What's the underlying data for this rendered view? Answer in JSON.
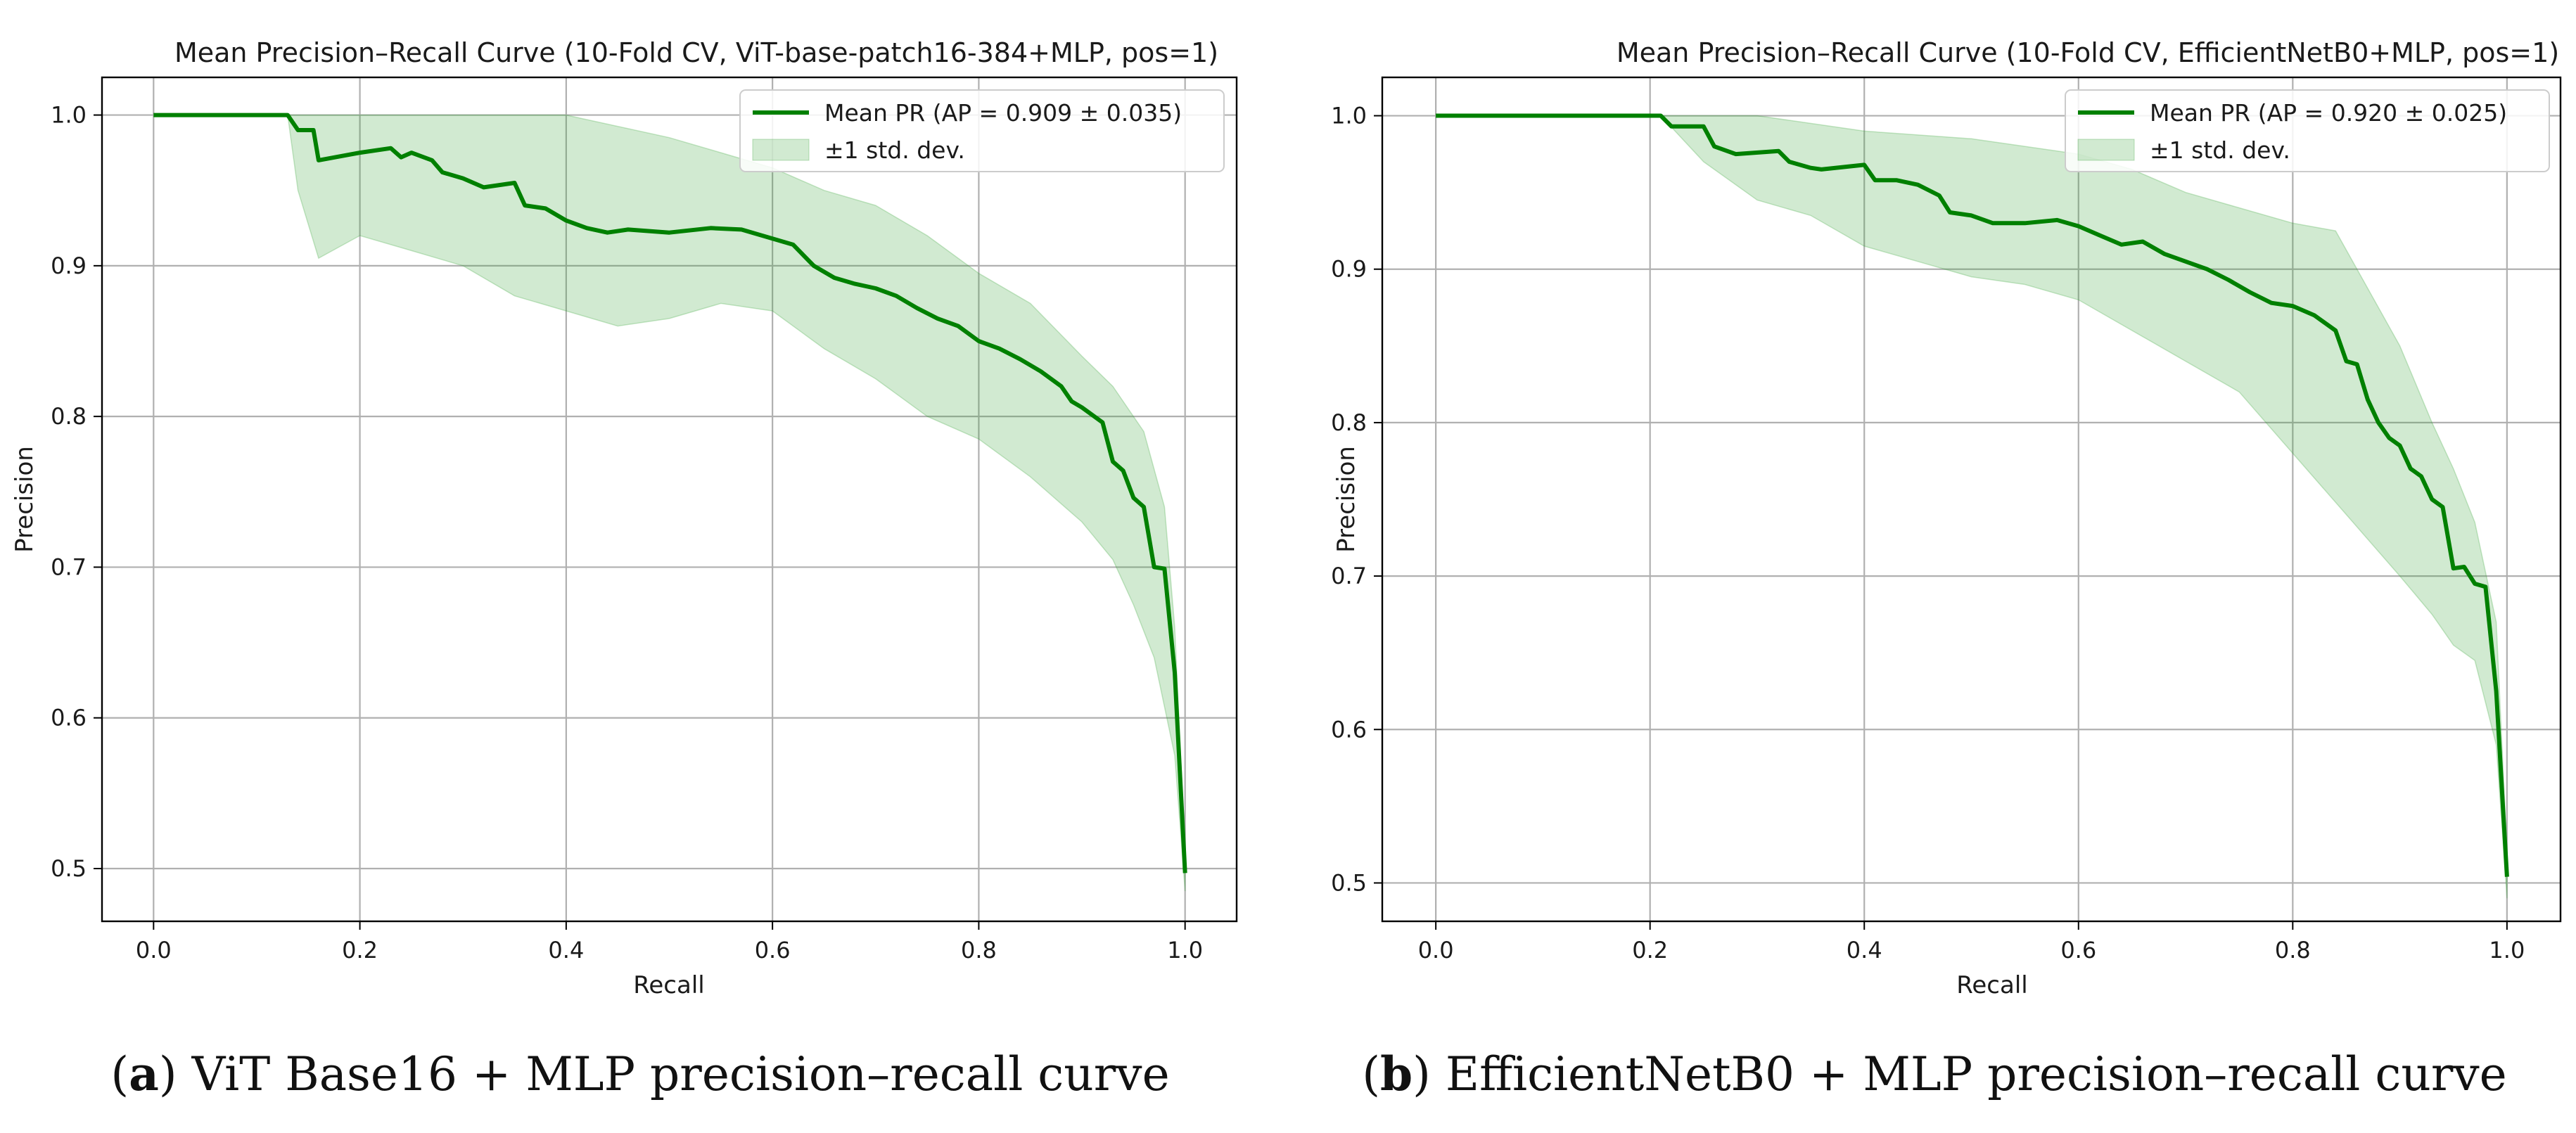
{
  "captions": [
    {
      "label": "a",
      "text": "ViT Base16 + MLP precision–recall curve"
    },
    {
      "label": "b",
      "text": "EfficientNetB0 + MLP precision–recall curve"
    }
  ],
  "colors": {
    "line": "#008000",
    "band": "#2ca02c",
    "grid": "#b0b0b0",
    "axis": "#000000"
  },
  "chart_data": [
    {
      "type": "line",
      "title": "Mean Precision–Recall Curve (10-Fold CV, ViT-base-patch16-384+MLP, pos=1)",
      "xlabel": "Recall",
      "ylabel": "Precision",
      "xlim": [
        -0.05,
        1.05
      ],
      "ylim": [
        0.465,
        1.025
      ],
      "xticks": [
        0.0,
        0.2,
        0.4,
        0.6,
        0.8,
        1.0
      ],
      "xticklabels": [
        "0.0",
        "0.2",
        "0.4",
        "0.6",
        "0.8",
        "1.0"
      ],
      "yticks": [
        0.5,
        0.6,
        0.7,
        0.8,
        0.9,
        1.0
      ],
      "yticklabels": [
        "0.5",
        "0.6",
        "0.7",
        "0.8",
        "0.9",
        "1.0"
      ],
      "grid": true,
      "legend_position": "top-right",
      "legend": [
        "Mean PR (AP = 0.909 ± 0.035)",
        "±1 std. dev."
      ],
      "series": [
        {
          "name": "Mean PR (AP = 0.909 ± 0.035)",
          "x": [
            0.0,
            0.13,
            0.14,
            0.155,
            0.16,
            0.2,
            0.23,
            0.24,
            0.25,
            0.27,
            0.28,
            0.3,
            0.32,
            0.35,
            0.36,
            0.38,
            0.4,
            0.42,
            0.44,
            0.46,
            0.5,
            0.54,
            0.57,
            0.6,
            0.62,
            0.64,
            0.66,
            0.68,
            0.7,
            0.72,
            0.74,
            0.76,
            0.78,
            0.8,
            0.82,
            0.84,
            0.86,
            0.88,
            0.89,
            0.9,
            0.92,
            0.93,
            0.94,
            0.95,
            0.96,
            0.97,
            0.98,
            0.99,
            1.0
          ],
          "y": [
            1.0,
            1.0,
            0.99,
            0.99,
            0.97,
            0.975,
            0.978,
            0.972,
            0.975,
            0.97,
            0.962,
            0.958,
            0.952,
            0.955,
            0.94,
            0.938,
            0.93,
            0.925,
            0.922,
            0.924,
            0.922,
            0.925,
            0.924,
            0.918,
            0.914,
            0.9,
            0.892,
            0.888,
            0.885,
            0.88,
            0.872,
            0.865,
            0.86,
            0.85,
            0.845,
            0.838,
            0.83,
            0.82,
            0.81,
            0.806,
            0.796,
            0.77,
            0.764,
            0.746,
            0.74,
            0.7,
            0.699,
            0.63,
            0.497
          ]
        },
        {
          "name": "±1 std. dev. upper",
          "x": [
            0.13,
            0.16,
            0.2,
            0.3,
            0.4,
            0.5,
            0.55,
            0.6,
            0.65,
            0.7,
            0.75,
            0.8,
            0.85,
            0.9,
            0.93,
            0.96,
            0.98,
            0.99,
            1.0
          ],
          "y": [
            1.0,
            1.0,
            1.0,
            1.0,
            1.0,
            0.985,
            0.975,
            0.965,
            0.95,
            0.94,
            0.92,
            0.895,
            0.875,
            0.84,
            0.82,
            0.79,
            0.74,
            0.66,
            0.51
          ]
        },
        {
          "name": "±1 std. dev. lower",
          "x": [
            0.13,
            0.14,
            0.16,
            0.2,
            0.25,
            0.3,
            0.35,
            0.4,
            0.45,
            0.5,
            0.55,
            0.6,
            0.65,
            0.7,
            0.75,
            0.8,
            0.85,
            0.9,
            0.93,
            0.95,
            0.97,
            0.99,
            1.0
          ],
          "y": [
            1.0,
            0.95,
            0.905,
            0.92,
            0.91,
            0.9,
            0.88,
            0.87,
            0.86,
            0.865,
            0.875,
            0.87,
            0.845,
            0.825,
            0.8,
            0.785,
            0.76,
            0.73,
            0.705,
            0.675,
            0.64,
            0.575,
            0.485
          ]
        }
      ]
    },
    {
      "type": "line",
      "title": "Mean Precision–Recall Curve (10-Fold CV, EfficientNetB0+MLP, pos=1)",
      "xlabel": "Recall",
      "ylabel": "Precision",
      "xlim": [
        -0.05,
        1.05
      ],
      "ylim": [
        0.475,
        1.025
      ],
      "xticks": [
        0.0,
        0.2,
        0.4,
        0.6,
        0.8,
        1.0
      ],
      "xticklabels": [
        "0.0",
        "0.2",
        "0.4",
        "0.6",
        "0.8",
        "1.0"
      ],
      "yticks": [
        0.5,
        0.6,
        0.7,
        0.8,
        0.9,
        1.0
      ],
      "yticklabels": [
        "0.5",
        "0.6",
        "0.7",
        "0.8",
        "0.9",
        "1.0"
      ],
      "grid": true,
      "legend_position": "top-right",
      "legend": [
        "Mean PR (AP = 0.920 ± 0.025)",
        "±1 std. dev."
      ],
      "series": [
        {
          "name": "Mean PR (AP = 0.920 ± 0.025)",
          "x": [
            0.0,
            0.21,
            0.22,
            0.25,
            0.26,
            0.28,
            0.32,
            0.33,
            0.35,
            0.36,
            0.4,
            0.41,
            0.43,
            0.45,
            0.47,
            0.48,
            0.5,
            0.52,
            0.55,
            0.58,
            0.6,
            0.62,
            0.64,
            0.66,
            0.68,
            0.7,
            0.72,
            0.74,
            0.76,
            0.78,
            0.8,
            0.82,
            0.84,
            0.85,
            0.86,
            0.87,
            0.88,
            0.89,
            0.9,
            0.91,
            0.92,
            0.93,
            0.94,
            0.95,
            0.96,
            0.97,
            0.98,
            0.99,
            1.0
          ],
          "y": [
            1.0,
            1.0,
            0.993,
            0.993,
            0.98,
            0.975,
            0.977,
            0.97,
            0.966,
            0.965,
            0.968,
            0.958,
            0.958,
            0.955,
            0.948,
            0.937,
            0.935,
            0.93,
            0.93,
            0.932,
            0.928,
            0.922,
            0.916,
            0.918,
            0.91,
            0.905,
            0.9,
            0.893,
            0.885,
            0.878,
            0.876,
            0.87,
            0.86,
            0.84,
            0.838,
            0.815,
            0.8,
            0.79,
            0.785,
            0.77,
            0.765,
            0.75,
            0.745,
            0.705,
            0.706,
            0.695,
            0.693,
            0.625,
            0.504
          ]
        },
        {
          "name": "±1 std. dev. upper",
          "x": [
            0.21,
            0.3,
            0.4,
            0.5,
            0.6,
            0.65,
            0.7,
            0.75,
            0.8,
            0.84,
            0.86,
            0.9,
            0.93,
            0.95,
            0.97,
            0.99,
            1.0
          ],
          "y": [
            1.0,
            1.0,
            0.99,
            0.985,
            0.975,
            0.965,
            0.95,
            0.94,
            0.93,
            0.925,
            0.9,
            0.85,
            0.8,
            0.77,
            0.735,
            0.67,
            0.52
          ]
        },
        {
          "name": "±1 std. dev. lower",
          "x": [
            0.21,
            0.25,
            0.3,
            0.35,
            0.4,
            0.45,
            0.5,
            0.55,
            0.6,
            0.65,
            0.7,
            0.75,
            0.8,
            0.85,
            0.9,
            0.93,
            0.95,
            0.97,
            0.99,
            1.0
          ],
          "y": [
            1.0,
            0.97,
            0.945,
            0.935,
            0.915,
            0.905,
            0.895,
            0.89,
            0.88,
            0.86,
            0.84,
            0.82,
            0.78,
            0.74,
            0.7,
            0.675,
            0.655,
            0.645,
            0.59,
            0.49
          ]
        }
      ]
    }
  ]
}
